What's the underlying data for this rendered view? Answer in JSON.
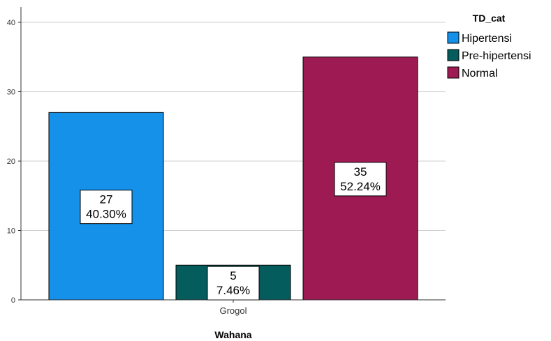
{
  "chart_data": {
    "type": "bar",
    "categories": [
      "Grogol"
    ],
    "series": [
      {
        "name": "Hipertensi",
        "values": [
          27
        ],
        "percent_labels": [
          "40.30%"
        ],
        "color": "#1591ea"
      },
      {
        "name": "Pre-hipertensi",
        "values": [
          5
        ],
        "percent_labels": [
          "7.46%"
        ],
        "color": "#045c5c"
      },
      {
        "name": "Normal",
        "values": [
          35
        ],
        "percent_labels": [
          "52.24%"
        ],
        "color": "#9e1a52"
      }
    ],
    "xlabel": "Wahana",
    "ylabel": "",
    "ylim": [
      0,
      42
    ],
    "yticks": [
      0,
      10,
      20,
      30,
      40
    ],
    "grid": true,
    "legend": {
      "title": "TD_cat",
      "placement": "top-right"
    }
  }
}
